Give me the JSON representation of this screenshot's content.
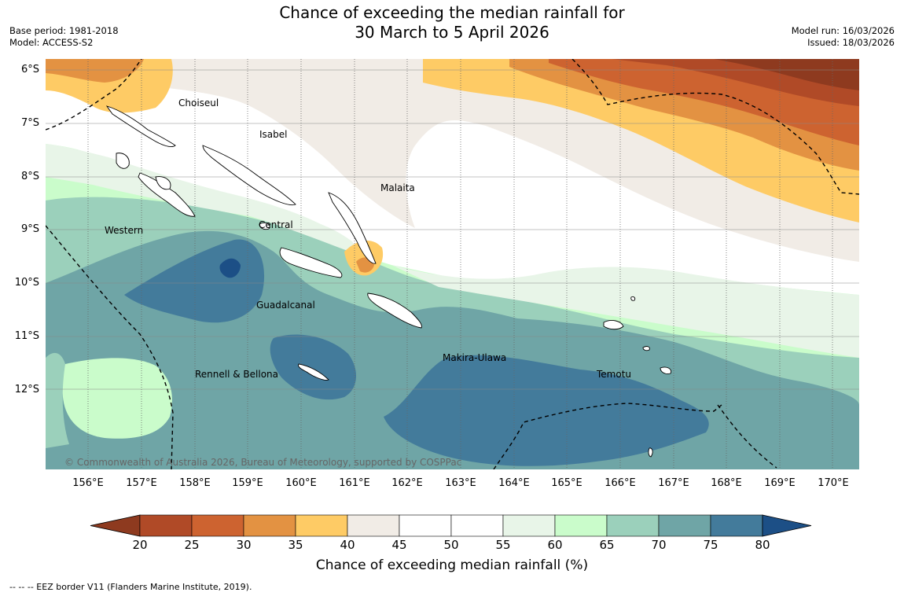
{
  "title": {
    "line1": "Chance of exceeding the median rainfall for",
    "line2": "30 March to 5 April 2026"
  },
  "meta": {
    "base_period": "Base period: 1981-2018",
    "model": "Model: ACCESS-S2",
    "model_run": "Model run: 16/03/2026",
    "issued": "Issued: 18/03/2026"
  },
  "map": {
    "lat_labels": [
      "6°S",
      "7°S",
      "8°S",
      "9°S",
      "10°S",
      "11°S",
      "12°S"
    ],
    "lon_labels": [
      "156°E",
      "157°E",
      "158°E",
      "159°E",
      "160°E",
      "161°E",
      "162°E",
      "163°E",
      "164°E",
      "165°E",
      "166°E",
      "167°E",
      "168°E",
      "169°E",
      "170°E"
    ],
    "places": {
      "choiseul": "Choiseul",
      "isabel": "Isabel",
      "malaita": "Malaita",
      "western": "Western",
      "central": "Central",
      "guadalcanal": "Guadalcanal",
      "makira": "Makira-Ulawa",
      "rennell": "Rennell & Bellona",
      "temotu": "Temotu"
    },
    "copyright": "© Commonwealth of Australia 2026, Bureau of Meteorology, supported by COSPPac"
  },
  "colorbar": {
    "ticks": [
      "20",
      "25",
      "30",
      "35",
      "40",
      "45",
      "50",
      "55",
      "60",
      "65",
      "70",
      "75",
      "80"
    ],
    "colors": [
      "#8e3a1f",
      "#b04a27",
      "#cd6330",
      "#e39242",
      "#fecb65",
      "#f1ece6",
      "#ffffff",
      "#ffffff",
      "#e8f5e8",
      "#cafccb",
      "#9bd0bb",
      "#6fa5a6",
      "#437b9b",
      "#1c4f86"
    ],
    "title": "Chance of exceeding median rainfall (%)"
  },
  "footnote": "--  --  -- EEZ border V11 (Flanders Marine Institute, 2019)."
}
